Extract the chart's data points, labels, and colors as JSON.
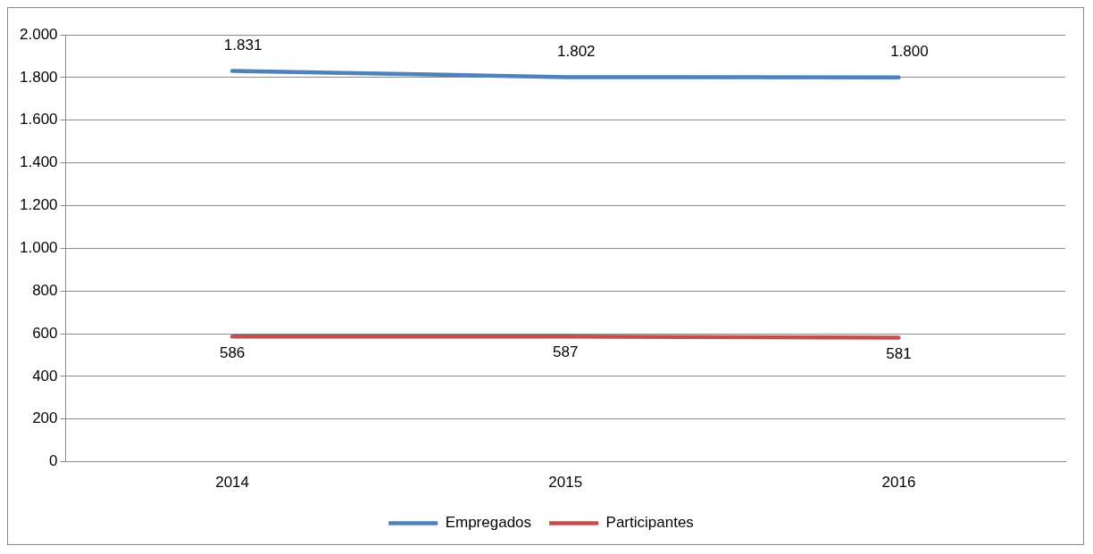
{
  "chart_data": {
    "type": "line",
    "categories": [
      "2014",
      "2015",
      "2016"
    ],
    "series": [
      {
        "name": "Empregados",
        "color": "#4f81bd",
        "values": [
          1831,
          1802,
          1800
        ],
        "value_labels": [
          "1.831",
          "1.802",
          "1.800"
        ]
      },
      {
        "name": "Participantes",
        "color": "#c0504d",
        "values": [
          586,
          587,
          581
        ],
        "value_labels": [
          "586",
          "587",
          "581"
        ]
      }
    ],
    "ylim": [
      0,
      2000
    ],
    "yticks": [
      0,
      200,
      400,
      600,
      800,
      {
        "value": 1000,
        "label": "1.000"
      },
      {
        "value": 1200,
        "label": "1.200"
      },
      {
        "value": 1400,
        "label": "1.400"
      },
      {
        "value": 1600,
        "label": "1.600"
      },
      {
        "value": 1800,
        "label": "1.800"
      },
      {
        "value": 2000,
        "label": "2.000"
      }
    ],
    "grid": "y",
    "legend": "bottom",
    "marker": "none",
    "line_style": "solid"
  }
}
